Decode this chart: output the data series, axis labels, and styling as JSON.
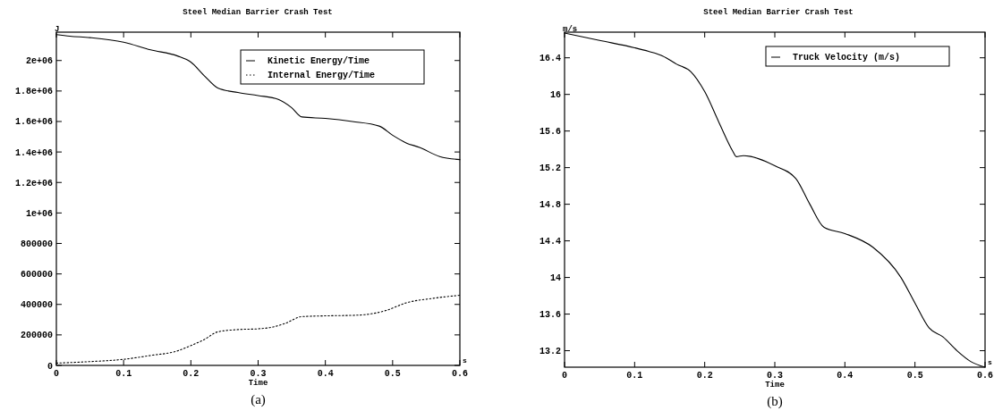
{
  "chart_data": [
    {
      "type": "line",
      "title": "Steel Median Barrier Crash Test",
      "xlabel": "Time",
      "ylabel": "J",
      "annotations": [
        "s",
        "(a)"
      ],
      "xlim": [
        0,
        0.6
      ],
      "xticks": [
        0,
        0.1,
        0.2,
        0.3,
        0.4,
        0.5,
        0.6
      ],
      "ylim": [
        0,
        2186000
      ],
      "yticks": [
        0,
        200000,
        400000,
        600000,
        800000,
        {
          "value": 1000000,
          "label": "1e+06"
        },
        {
          "value": 1200000,
          "label": "1.2e+06"
        },
        {
          "value": 1400000,
          "label": "1.4e+06"
        },
        {
          "value": 1600000,
          "label": "1.6e+06"
        },
        {
          "value": 1800000,
          "label": "1.8e+06"
        },
        {
          "value": 2000000,
          "label": "2e+06"
        }
      ],
      "grid": false,
      "legend": "top right",
      "series": [
        {
          "name": "Kinetic Energy/Time",
          "color": "#000000",
          "line_style": "solid",
          "x": [
            0,
            0.02,
            0.05,
            0.1,
            0.14,
            0.18,
            0.2,
            0.22,
            0.24,
            0.27,
            0.3,
            0.33,
            0.35,
            0.365,
            0.4,
            0.44,
            0.48,
            0.5,
            0.52,
            0.54,
            0.57,
            0.6
          ],
          "values": [
            2170000,
            2160000,
            2150000,
            2120000,
            2070000,
            2030000,
            1990000,
            1900000,
            1820000,
            1790000,
            1770000,
            1745000,
            1690000,
            1630000,
            1620000,
            1600000,
            1570000,
            1510000,
            1460000,
            1430000,
            1370000,
            1350000
          ]
        },
        {
          "name": "Internal Energy/Time",
          "color": "#000000",
          "line_style": "dotted",
          "x": [
            0,
            0.05,
            0.1,
            0.14,
            0.18,
            0.2,
            0.22,
            0.24,
            0.27,
            0.3,
            0.32,
            0.34,
            0.365,
            0.4,
            0.45,
            0.49,
            0.52,
            0.56,
            0.6
          ],
          "values": [
            15000,
            25000,
            40000,
            65000,
            95000,
            130000,
            170000,
            220000,
            235000,
            240000,
            250000,
            275000,
            320000,
            325000,
            330000,
            360000,
            410000,
            440000,
            460000
          ]
        }
      ]
    },
    {
      "type": "line",
      "title": "Steel Median Barrier Crash Test",
      "xlabel": "Time",
      "ylabel": "m/s",
      "annotations": [
        "s",
        "(b)"
      ],
      "xlim": [
        0,
        0.6
      ],
      "xticks": [
        0,
        0.1,
        0.2,
        0.3,
        0.4,
        0.5,
        0.6
      ],
      "ylim": [
        13.02,
        16.68
      ],
      "yticks": [
        13.2,
        13.6,
        14,
        14.4,
        14.8,
        15.2,
        15.6,
        16,
        16.4
      ],
      "grid": false,
      "legend": "top right",
      "series": [
        {
          "name": "Truck Velocity (m/s)",
          "color": "#000000",
          "line_style": "solid",
          "x": [
            0,
            0.05,
            0.1,
            0.12,
            0.14,
            0.16,
            0.18,
            0.2,
            0.22,
            0.24,
            0.245,
            0.255,
            0.3,
            0.33,
            0.35,
            0.37,
            0.4,
            0.44,
            0.48,
            0.5,
            0.52,
            0.54,
            0.56,
            0.58,
            0.6
          ],
          "values": [
            16.67,
            16.59,
            16.51,
            16.47,
            16.42,
            16.33,
            16.25,
            16.03,
            15.7,
            15.38,
            15.32,
            15.33,
            15.22,
            15.08,
            14.8,
            14.55,
            14.48,
            14.33,
            14.0,
            13.72,
            13.45,
            13.35,
            13.2,
            13.08,
            13.02
          ]
        }
      ]
    }
  ]
}
